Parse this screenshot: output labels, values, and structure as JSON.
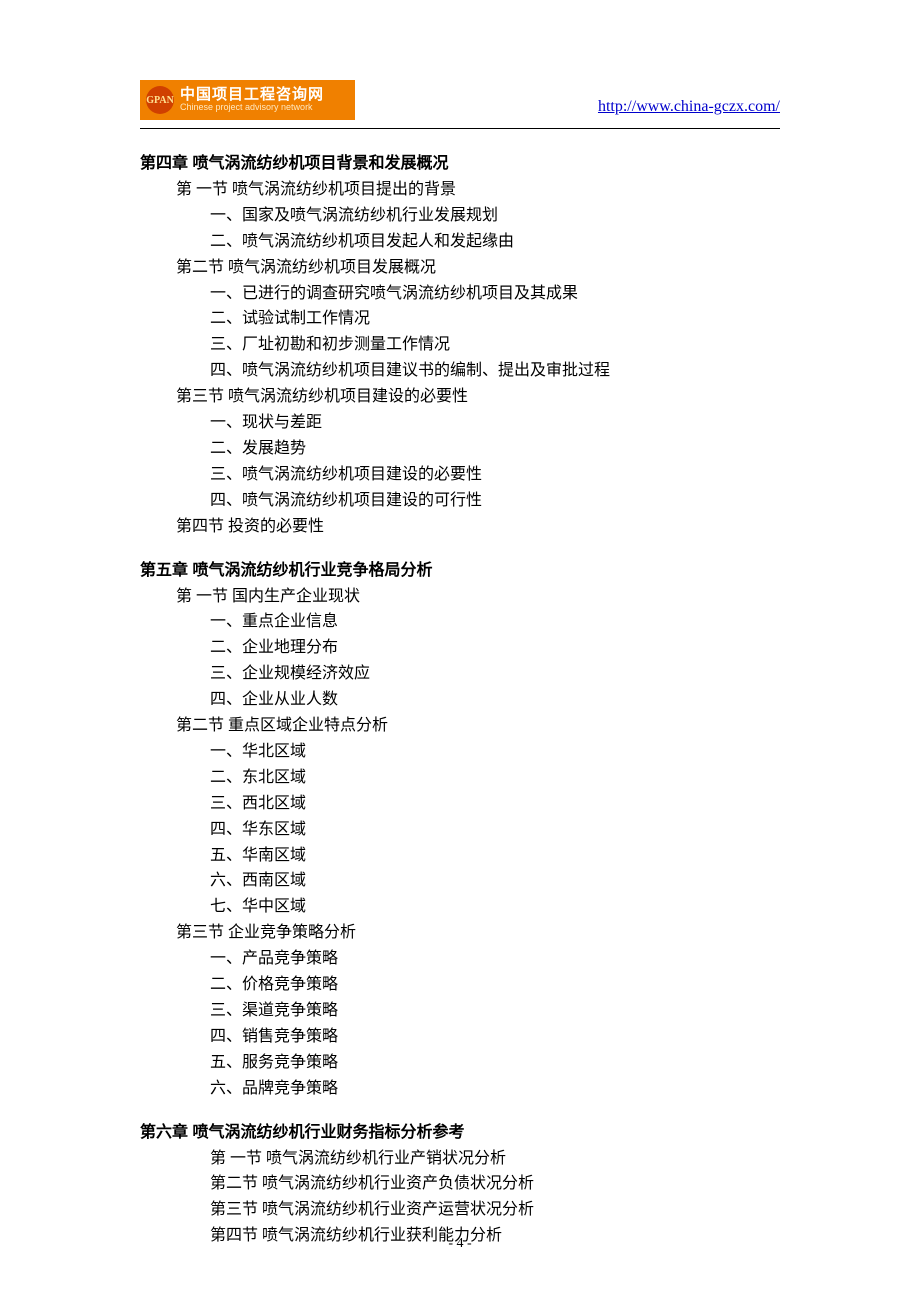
{
  "header": {
    "logo_cn": "中国项目工程咨询网",
    "logo_en": "Chinese project advisory network",
    "logo_badge": "GPAN",
    "url": "http://www.china-gczx.com/"
  },
  "colors": {
    "logo_bg": "#f08000",
    "logo_icon_bg": "#d04000",
    "logo_text": "#ffffff",
    "url": "#0000cc",
    "text": "#000000",
    "background": "#ffffff"
  },
  "typography": {
    "body_font": "SimSun",
    "heading_font": "SimHei",
    "body_size_pt": 12,
    "line_height": 1.62
  },
  "chapter4": {
    "title": "第四章  喷气涡流纺纱机项目背景和发展概况",
    "s1": {
      "title": "第 一节  喷气涡流纺纱机项目提出的背景",
      "i1": "一、国家及喷气涡流纺纱机行业发展规划",
      "i2": "二、喷气涡流纺纱机项目发起人和发起缘由"
    },
    "s2": {
      "title": "第二节  喷气涡流纺纱机项目发展概况",
      "i1": "一、已进行的调查研究喷气涡流纺纱机项目及其成果",
      "i2": "二、试验试制工作情况",
      "i3": "三、厂址初勘和初步测量工作情况",
      "i4": "四、喷气涡流纺纱机项目建议书的编制、提出及审批过程"
    },
    "s3": {
      "title": "第三节  喷气涡流纺纱机项目建设的必要性",
      "i1": "一、现状与差距",
      "i2": "二、发展趋势",
      "i3": "三、喷气涡流纺纱机项目建设的必要性",
      "i4": "四、喷气涡流纺纱机项目建设的可行性"
    },
    "s4": {
      "title": "第四节    投资的必要性"
    }
  },
  "chapter5": {
    "title": "第五章  喷气涡流纺纱机行业竞争格局分析",
    "s1": {
      "title": "第 一节    国内生产企业现状",
      "i1": "一、重点企业信息",
      "i2": "二、企业地理分布",
      "i3": "三、企业规模经济效应",
      "i4": "四、企业从业人数"
    },
    "s2": {
      "title": "第二节    重点区域企业特点分析",
      "i1": "一、华北区域",
      "i2": "二、东北区域",
      "i3": "三、西北区域",
      "i4": "四、华东区域",
      "i5": "五、华南区域",
      "i6": "六、西南区域",
      "i7": "七、华中区域"
    },
    "s3": {
      "title": "第三节    企业竞争策略分析",
      "i1": "一、产品竞争策略",
      "i2": "二、价格竞争策略",
      "i3": "三、渠道竞争策略",
      "i4": "四、销售竞争策略",
      "i5": "五、服务竞争策略",
      "i6": "六、品牌竞争策略"
    }
  },
  "chapter6": {
    "title": "第六章  喷气涡流纺纱机行业财务指标分析参考",
    "s1": "第 一节  喷气涡流纺纱机行业产销状况分析",
    "s2": "第二节  喷气涡流纺纱机行业资产负债状况分析",
    "s3": "第三节  喷气涡流纺纱机行业资产运营状况分析",
    "s4": "第四节  喷气涡流纺纱机行业获利能力分析"
  },
  "page_number": "- 4 -"
}
